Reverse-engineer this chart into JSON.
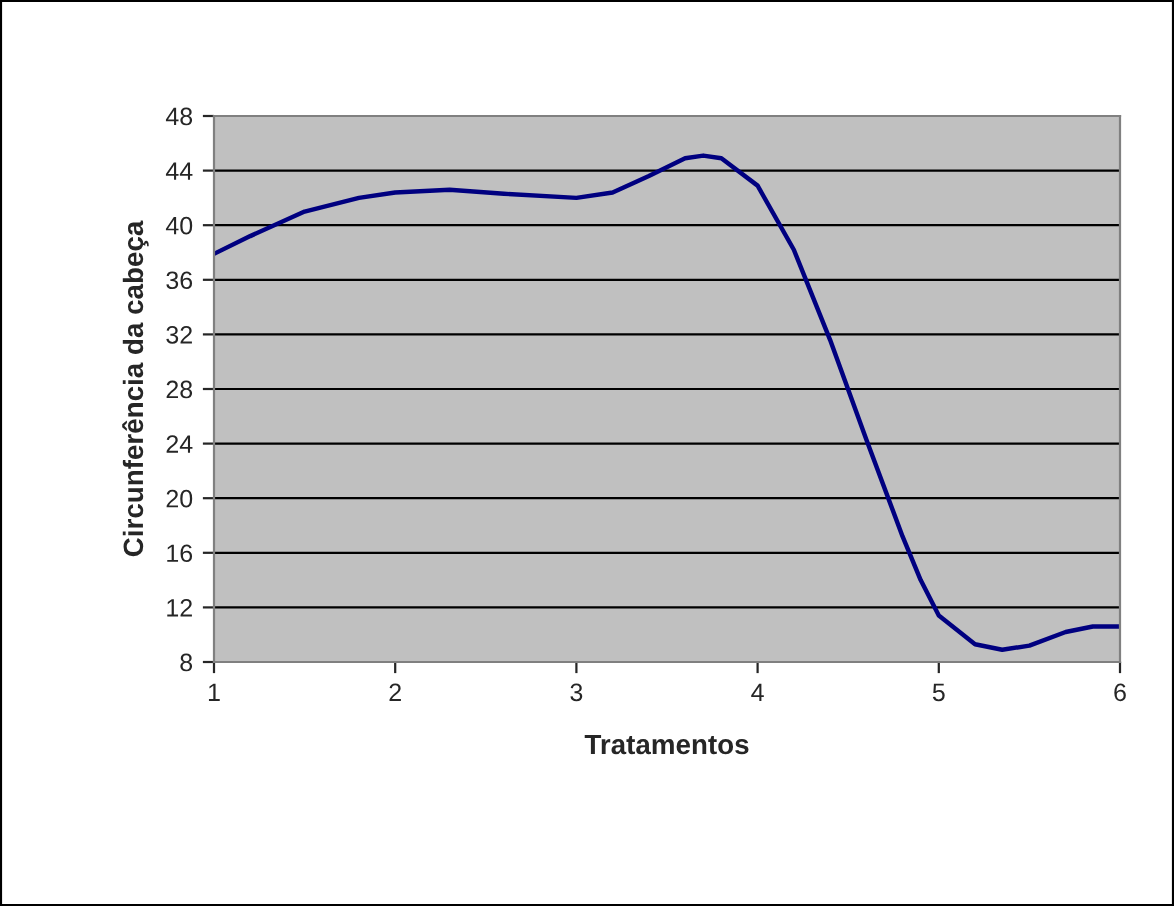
{
  "chart_data": {
    "type": "line",
    "xlabel": "Tratamentos",
    "ylabel": "Circunferência da cabeça",
    "x": [
      1.0,
      1.2,
      1.5,
      1.8,
      2.0,
      2.3,
      2.6,
      3.0,
      3.2,
      3.4,
      3.6,
      3.7,
      3.8,
      4.0,
      4.2,
      4.4,
      4.6,
      4.8,
      4.9,
      5.0,
      5.2,
      5.35,
      5.5,
      5.7,
      5.85,
      6.0
    ],
    "series": [
      {
        "color": "#000080",
        "values": [
          37.9,
          39.2,
          41.0,
          42.0,
          42.4,
          42.6,
          42.3,
          42.0,
          42.4,
          43.6,
          44.9,
          45.1,
          44.9,
          42.9,
          38.2,
          31.6,
          24.3,
          17.2,
          14.0,
          11.4,
          9.3,
          8.9,
          9.2,
          10.2,
          10.6,
          10.6
        ]
      }
    ],
    "xlim": [
      1,
      6
    ],
    "ylim": [
      8,
      48
    ],
    "xticks": [
      1,
      2,
      3,
      4,
      5,
      6
    ],
    "yticks": [
      8,
      12,
      16,
      20,
      24,
      28,
      32,
      36,
      40,
      44,
      48
    ],
    "grid": "y",
    "legend": false,
    "marker": "none",
    "line_style": "solid"
  }
}
